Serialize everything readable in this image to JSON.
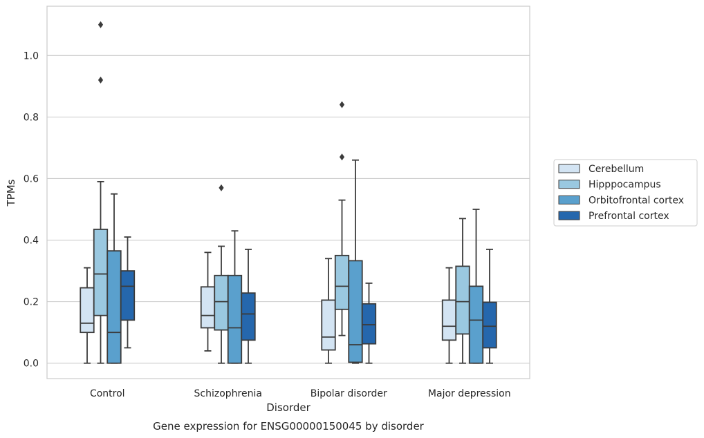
{
  "chart_data": {
    "type": "box",
    "title": "",
    "caption": "Gene expression for ENSG00000150045 by disorder",
    "xlabel": "Disorder",
    "ylabel": "TPMs",
    "ylim": [
      -0.05,
      1.16
    ],
    "yticks": [
      0.0,
      0.2,
      0.4,
      0.6,
      0.8,
      1.0
    ],
    "ytick_labels": [
      "0.0",
      "0.2",
      "0.4",
      "0.6",
      "0.8",
      "1.0"
    ],
    "grid": true,
    "legend_position": "right",
    "categories": [
      "Control",
      "Schizophrenia",
      "Bipolar disorder",
      "Major depression"
    ],
    "series": [
      {
        "name": "Cerebellum",
        "color": "#d3e4f3",
        "boxes": [
          {
            "whisker_low": 0.0,
            "q1": 0.1,
            "median": 0.13,
            "q3": 0.245,
            "whisker_high": 0.31,
            "outliers": []
          },
          {
            "whisker_low": 0.04,
            "q1": 0.115,
            "median": 0.155,
            "q3": 0.248,
            "whisker_high": 0.36,
            "outliers": []
          },
          {
            "whisker_low": 0.0,
            "q1": 0.043,
            "median": 0.085,
            "q3": 0.205,
            "whisker_high": 0.34,
            "outliers": []
          },
          {
            "whisker_low": 0.0,
            "q1": 0.075,
            "median": 0.12,
            "q3": 0.205,
            "whisker_high": 0.31,
            "outliers": []
          }
        ]
      },
      {
        "name": "Hipppocampus",
        "color": "#9ac8e0",
        "boxes": [
          {
            "whisker_low": 0.0,
            "q1": 0.155,
            "median": 0.29,
            "q3": 0.435,
            "whisker_high": 0.59,
            "outliers": [
              0.92,
              1.1
            ]
          },
          {
            "whisker_low": 0.0,
            "q1": 0.108,
            "median": 0.2,
            "q3": 0.285,
            "whisker_high": 0.38,
            "outliers": [
              0.57
            ]
          },
          {
            "whisker_low": 0.09,
            "q1": 0.175,
            "median": 0.25,
            "q3": 0.35,
            "whisker_high": 0.53,
            "outliers": [
              0.67,
              0.84
            ]
          },
          {
            "whisker_low": 0.0,
            "q1": 0.095,
            "median": 0.2,
            "q3": 0.315,
            "whisker_high": 0.47,
            "outliers": []
          }
        ]
      },
      {
        "name": "Orbitofrontal cortex",
        "color": "#5aa0cd",
        "boxes": [
          {
            "whisker_low": 0.0,
            "q1": 0.0,
            "median": 0.1,
            "q3": 0.365,
            "whisker_high": 0.55,
            "outliers": []
          },
          {
            "whisker_low": 0.0,
            "q1": 0.0,
            "median": 0.115,
            "q3": 0.285,
            "whisker_high": 0.43,
            "outliers": []
          },
          {
            "whisker_low": 0.0,
            "q1": 0.003,
            "median": 0.06,
            "q3": 0.333,
            "whisker_high": 0.66,
            "outliers": []
          },
          {
            "whisker_low": 0.0,
            "q1": 0.0,
            "median": 0.14,
            "q3": 0.25,
            "whisker_high": 0.5,
            "outliers": []
          }
        ]
      },
      {
        "name": "Prefrontal cortex",
        "color": "#2567ad",
        "boxes": [
          {
            "whisker_low": 0.05,
            "q1": 0.14,
            "median": 0.25,
            "q3": 0.3,
            "whisker_high": 0.41,
            "outliers": []
          },
          {
            "whisker_low": 0.0,
            "q1": 0.075,
            "median": 0.16,
            "q3": 0.228,
            "whisker_high": 0.37,
            "outliers": []
          },
          {
            "whisker_low": 0.0,
            "q1": 0.063,
            "median": 0.125,
            "q3": 0.193,
            "whisker_high": 0.26,
            "outliers": []
          },
          {
            "whisker_low": 0.0,
            "q1": 0.05,
            "median": 0.12,
            "q3": 0.198,
            "whisker_high": 0.37,
            "outliers": []
          }
        ]
      }
    ]
  }
}
